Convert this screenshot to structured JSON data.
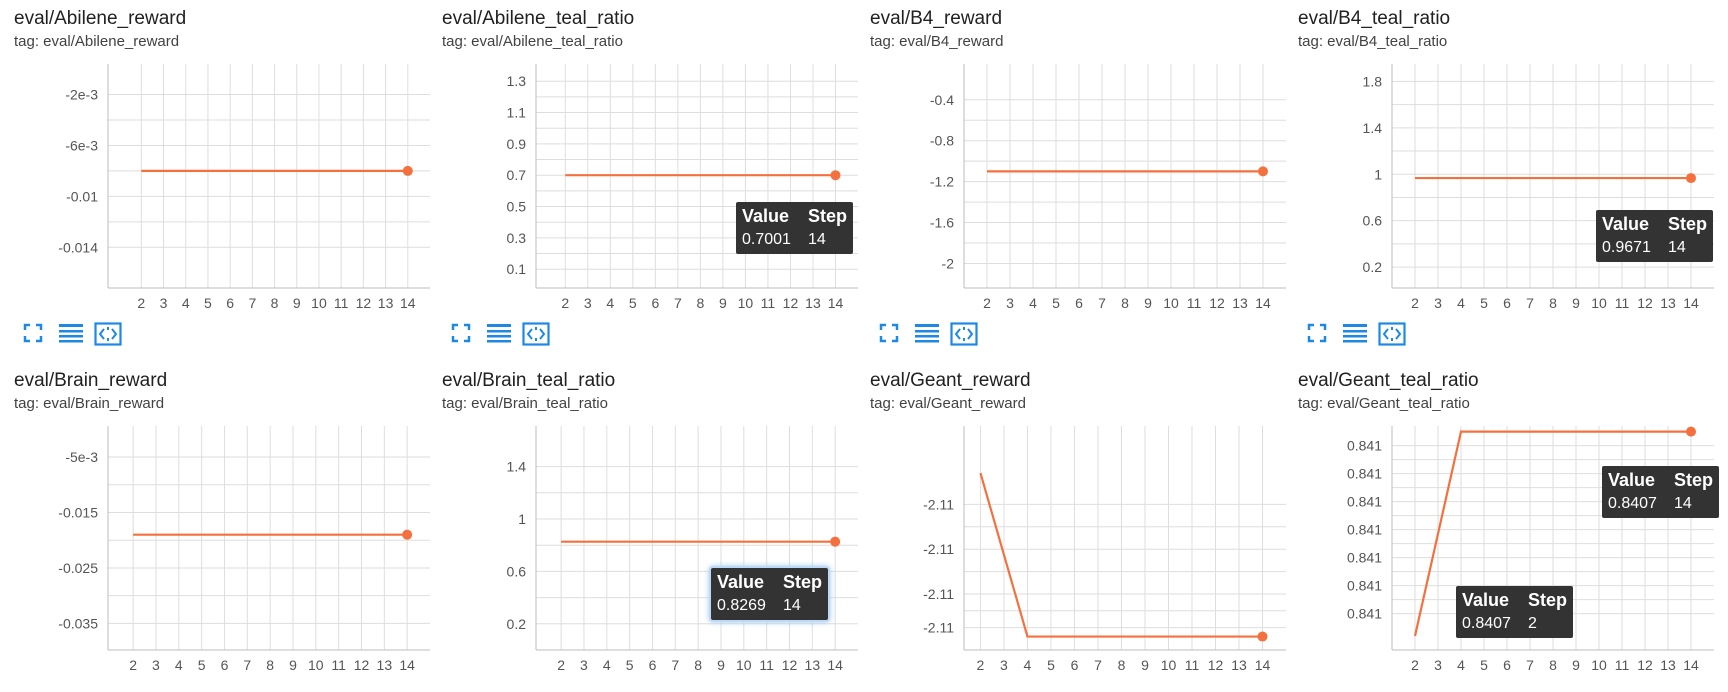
{
  "colors": {
    "line": "#f4703e",
    "grid": "#dedede",
    "axis": "#bdbdbd",
    "tick_text": "#555555",
    "tool_icon": "#1e88e5",
    "tooltip_bg": "#333333"
  },
  "tools": {
    "fit_icon": "fit-screen-icon",
    "log_icon": "log-scale-lines-icon",
    "reset_icon": "reset-zoom-icon"
  },
  "tooltip_headers": {
    "value": "Value",
    "step": "Step"
  },
  "chart_data": [
    {
      "type": "line",
      "title": "eval/Abilene_reward",
      "tag": "tag: eval/Abilene_reward",
      "x": [
        14
      ],
      "y": [
        -0.008
      ],
      "xticks": [
        2,
        3,
        4,
        5,
        6,
        7,
        8,
        9,
        10,
        11,
        12,
        13,
        14
      ],
      "xlim": [
        0.5,
        15
      ],
      "yticks": [
        -0.002,
        -0.006,
        -0.01,
        -0.014
      ],
      "ytick_labels": [
        "-2e-3",
        "-6e-3",
        "-0.01",
        "-0.014"
      ],
      "ylim": [
        -0.0172,
        0.0004
      ],
      "flat_line": [
        2,
        14,
        -0.008
      ],
      "show_tools": true,
      "tooltips": []
    },
    {
      "type": "line",
      "title": "eval/Abilene_teal_ratio",
      "tag": "tag: eval/Abilene_teal_ratio",
      "x": [
        14
      ],
      "y": [
        0.7001
      ],
      "xticks": [
        2,
        3,
        4,
        5,
        6,
        7,
        8,
        9,
        10,
        11,
        12,
        13,
        14
      ],
      "xlim": [
        0.7,
        15
      ],
      "yticks": [
        1.3,
        1.1,
        0.9,
        0.7,
        0.5,
        0.3,
        0.1
      ],
      "ytick_labels": [
        "1.3",
        "1.1",
        "0.9",
        "0.7",
        "0.5",
        "0.3",
        "0.1"
      ],
      "ylim": [
        -0.02,
        1.41
      ],
      "flat_line": [
        2,
        14,
        0.7001
      ],
      "show_tools": true,
      "tooltips": [
        {
          "value": "0.7001",
          "step": "14"
        }
      ]
    },
    {
      "type": "line",
      "title": "eval/B4_reward",
      "tag": "tag: eval/B4_reward",
      "x": [
        14
      ],
      "y": [
        -1.1
      ],
      "xticks": [
        2,
        3,
        4,
        5,
        6,
        7,
        8,
        9,
        10,
        11,
        12,
        13,
        14
      ],
      "xlim": [
        1,
        15
      ],
      "yticks": [
        -0.4,
        -0.8,
        -1.2,
        -1.6,
        -2
      ],
      "ytick_labels": [
        "-0.4",
        "-0.8",
        "-1.2",
        "-1.6",
        "-2"
      ],
      "ylim": [
        -2.24,
        -0.05
      ],
      "flat_line": [
        2,
        14,
        -1.1
      ],
      "show_tools": true,
      "tooltips": []
    },
    {
      "type": "line",
      "title": "eval/B4_teal_ratio",
      "tag": "tag: eval/B4_teal_ratio",
      "x": [
        14
      ],
      "y": [
        0.9671
      ],
      "xticks": [
        2,
        3,
        4,
        5,
        6,
        7,
        8,
        9,
        10,
        11,
        12,
        13,
        14
      ],
      "xlim": [
        1,
        15
      ],
      "yticks": [
        1.8,
        1.4,
        1,
        0.6,
        0.2
      ],
      "ytick_labels": [
        "1.8",
        "1.4",
        "1",
        "0.6",
        "0.2"
      ],
      "ylim": [
        0.02,
        1.95
      ],
      "flat_line": [
        2,
        14,
        0.9671
      ],
      "show_tools": true,
      "tooltips": [
        {
          "value": "0.9671",
          "step": "14"
        }
      ]
    },
    {
      "type": "line",
      "title": "eval/Brain_reward",
      "tag": "tag: eval/Brain_reward",
      "x": [
        14
      ],
      "y": [
        -0.019
      ],
      "xticks": [
        2,
        3,
        4,
        5,
        6,
        7,
        8,
        9,
        10,
        11,
        12,
        13,
        14
      ],
      "xlim": [
        0.9,
        15
      ],
      "yticks": [
        -0.005,
        -0.015,
        -0.025,
        -0.035
      ],
      "ytick_labels": [
        "-5e-3",
        "-0.015",
        "-0.025",
        "-0.035"
      ],
      "ylim": [
        -0.0398,
        0.0006
      ],
      "flat_line": [
        2,
        14,
        -0.019
      ],
      "show_tools": false,
      "tooltips": []
    },
    {
      "type": "line",
      "title": "eval/Brain_teal_ratio",
      "tag": "tag: eval/Brain_teal_ratio",
      "x": [
        14
      ],
      "y": [
        0.8269
      ],
      "xticks": [
        2,
        3,
        4,
        5,
        6,
        7,
        8,
        9,
        10,
        11,
        12,
        13,
        14
      ],
      "xlim": [
        0.9,
        15
      ],
      "yticks": [
        1.4,
        1,
        0.6,
        0.2
      ],
      "ytick_labels": [
        "1.4",
        "1",
        "0.6",
        "0.2"
      ],
      "ylim": [
        0.0,
        1.71
      ],
      "flat_line": [
        2,
        14,
        0.8269
      ],
      "show_tools": false,
      "tooltips": [
        {
          "value": "0.8269",
          "step": "14",
          "glow": true
        }
      ]
    },
    {
      "type": "line",
      "title": "eval/Geant_reward",
      "tag": "tag: eval/Geant_reward",
      "x": [
        2,
        4,
        14
      ],
      "y": [
        2.1,
        9.4,
        9.4
      ],
      "xticks": [
        2,
        3,
        4,
        5,
        6,
        7,
        8,
        9,
        10,
        11,
        12,
        13,
        14
      ],
      "xlim": [
        1.3,
        15
      ],
      "yticks": [
        3.5,
        5.5,
        7.5,
        9.0
      ],
      "ytick_labels": [
        "-2.11",
        "-2.11",
        "-2.11",
        "-2.11"
      ],
      "ylim": [
        0,
        10
      ],
      "ylim_inverted": true,
      "show_tools": false,
      "tooltips": []
    },
    {
      "type": "line",
      "title": "eval/Geant_teal_ratio",
      "tag": "tag: eval/Geant_teal_ratio",
      "x": [
        2,
        4,
        14
      ],
      "y": [
        0.5,
        7.8,
        7.8
      ],
      "xticks": [
        2,
        3,
        4,
        5,
        6,
        7,
        8,
        9,
        10,
        11,
        12,
        13,
        14
      ],
      "xlim": [
        1,
        15
      ],
      "yticks": [
        7.3,
        6.3,
        5.3,
        4.3,
        3.3,
        2.3,
        1.3
      ],
      "ytick_labels": [
        "0.841",
        "0.841",
        "0.841",
        "0.841",
        "0.841",
        "0.841",
        "0.841"
      ],
      "ylim": [
        0,
        8
      ],
      "show_tools": false,
      "tooltips": [
        {
          "value": "0.8407",
          "step": "14"
        },
        {
          "value": "0.8407",
          "step": "2"
        }
      ]
    }
  ]
}
